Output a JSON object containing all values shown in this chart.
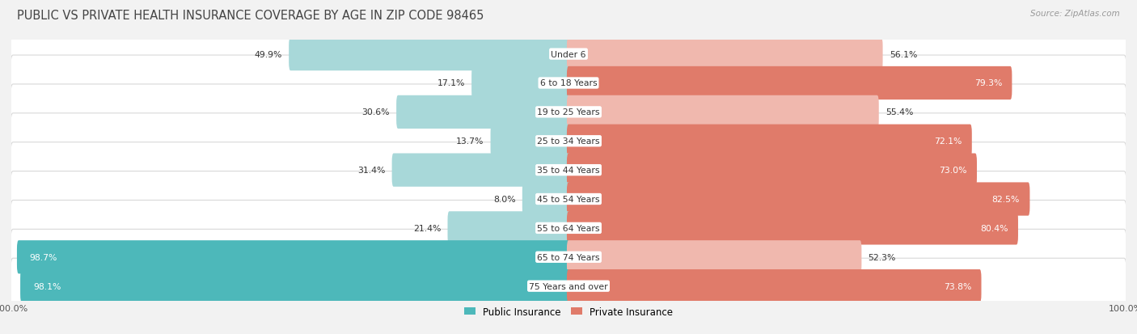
{
  "title": "PUBLIC VS PRIVATE HEALTH INSURANCE COVERAGE BY AGE IN ZIP CODE 98465",
  "source": "Source: ZipAtlas.com",
  "categories": [
    "Under 6",
    "6 to 18 Years",
    "19 to 25 Years",
    "25 to 34 Years",
    "35 to 44 Years",
    "45 to 54 Years",
    "55 to 64 Years",
    "65 to 74 Years",
    "75 Years and over"
  ],
  "public_values": [
    49.9,
    17.1,
    30.6,
    13.7,
    31.4,
    8.0,
    21.4,
    98.7,
    98.1
  ],
  "private_values": [
    56.1,
    79.3,
    55.4,
    72.1,
    73.0,
    82.5,
    80.4,
    52.3,
    73.8
  ],
  "public_color_dark": "#4db8ba",
  "public_color_light": "#a8d8d9",
  "private_color_dark": "#e07b6a",
  "private_color_light": "#f0b8ae",
  "row_bg_color": "#ffffff",
  "row_border_color": "#d8d8d8",
  "outer_bg_color": "#f2f2f2",
  "title_color": "#444444",
  "source_color": "#999999",
  "label_color_dark": "#333333",
  "label_color_white": "#ffffff",
  "title_fontsize": 10.5,
  "bar_fontsize": 7.8,
  "cat_fontsize": 7.8,
  "legend_fontsize": 8.5,
  "axis_label_fontsize": 8,
  "max_value": 100.0,
  "legend_public": "Public Insurance",
  "legend_private": "Private Insurance",
  "pub_dark_threshold": 60,
  "priv_dark_threshold": 65
}
